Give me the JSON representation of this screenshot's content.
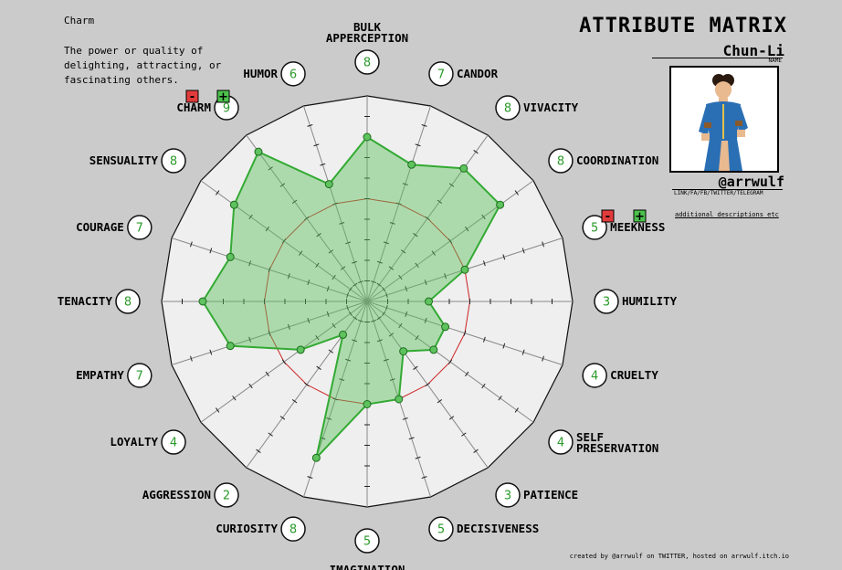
{
  "header": {
    "title": "ATTRIBUTE MATRIX",
    "character_name": "Chun-Li",
    "name_caption": "NAME",
    "handle": "@arrwulf",
    "handle_caption": "LINK/FA/FB/TWITTER/TELEGRAM",
    "additional": "additional descriptions etc"
  },
  "description": {
    "title": "Charm",
    "text": "The power or quality of delighting, attracting, or fascinating others."
  },
  "controls": {
    "minus": "-",
    "plus": "+"
  },
  "footer": "created by @arrwulf on TWITTER, hosted on arrwulf.itch.io",
  "colors": {
    "fill": "#5ec25e",
    "stroke": "#33aa33",
    "ring": "#cc2222",
    "value_text": "#2a9a2a"
  },
  "chart_data": {
    "type": "radar",
    "rmax": 10,
    "reference_ring": 5,
    "grid": true,
    "categories": [
      "BULK APPERCEPTION",
      "CANDOR",
      "VIVACITY",
      "COORDINATION",
      "MEEKNESS",
      "HUMILITY",
      "CRUELTY",
      "SELF PRESERVATION",
      "PATIENCE",
      "DECISIVENESS",
      "IMAGINATION",
      "CURIOSITY",
      "AGGRESSION",
      "LOYALTY",
      "EMPATHY",
      "TENACITY",
      "COURAGE",
      "SENSUALITY",
      "CHARM",
      "HUMOR"
    ],
    "series": [
      {
        "values": [
          8,
          7,
          8,
          8,
          5,
          3,
          4,
          4,
          3,
          5,
          5,
          8,
          2,
          4,
          7,
          8,
          7,
          8,
          9,
          6
        ]
      }
    ]
  }
}
